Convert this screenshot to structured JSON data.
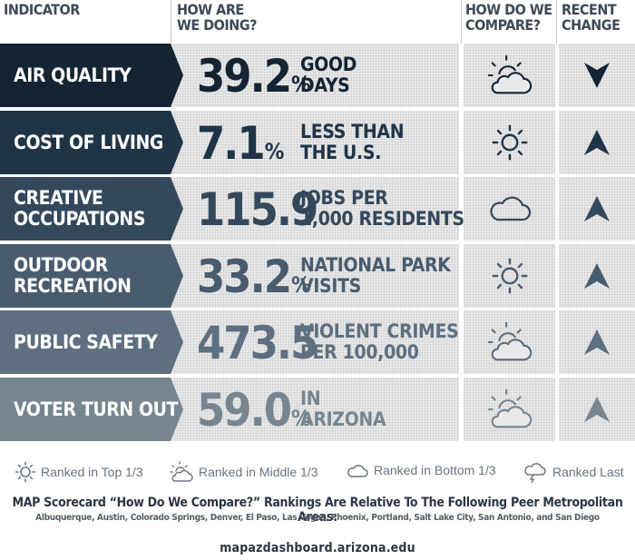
{
  "headers": {
    "indicator": "INDICATOR",
    "doing": "HOW ARE WE DOING?",
    "compare": "HOW DO WE COMPARE?",
    "change": "RECENT CHANGE"
  },
  "rows": [
    {
      "indicator": "AIR QUALITY",
      "value": "39.2",
      "unit": "%",
      "desc": [
        "GOOD",
        "DAYS"
      ],
      "compare": "partly-cloudy-icon",
      "change": "down",
      "color": "#142433",
      "text_color": "#142433"
    },
    {
      "indicator": "COST OF LIVING",
      "value": "7.1",
      "unit": "%",
      "desc": [
        "LESS THAN",
        "THE U.S."
      ],
      "compare": "sun-icon",
      "change": "up",
      "color": "#1f3447",
      "text_color": "#1f3447"
    },
    {
      "indicator": "CREATIVE OCCUPATIONS",
      "value": "115.9",
      "unit": "",
      "desc": [
        "JOBS PER",
        "1,000 RESIDENTS"
      ],
      "compare": "cloud-icon",
      "change": "up",
      "color": "#34485b",
      "text_color": "#34485b"
    },
    {
      "indicator": "OUTDOOR RECREATION",
      "value": "33.2",
      "unit": "%",
      "desc": [
        "NATIONAL PARK",
        "VISITS"
      ],
      "compare": "sun-icon",
      "change": "up",
      "color": "#485c6e",
      "text_color": "#485c6e"
    },
    {
      "indicator": "PUBLIC SAFETY",
      "value": "473.5",
      "unit": "",
      "desc": [
        "VIOLENT CRIMES",
        "PER 100,000"
      ],
      "compare": "partly-cloudy-icon",
      "change": "up",
      "color": "#5d6f80",
      "text_color": "#5d6f80"
    },
    {
      "indicator": "VOTER TURN OUT",
      "value": "59.0",
      "unit": "%",
      "desc": [
        "IN",
        "ARIZONA"
      ],
      "compare": "partly-cloudy-icon",
      "change": "up",
      "color": "#76858f",
      "text_color": "#76858f"
    }
  ],
  "legend": [
    {
      "icon": "sun-icon",
      "label": "Ranked in Top 1/3"
    },
    {
      "icon": "partly-cloudy-icon",
      "label": "Ranked in Middle 1/3"
    },
    {
      "icon": "cloud-icon",
      "label": "Ranked in Bottom 1/3"
    },
    {
      "icon": "rain-cloud-icon",
      "label": "Ranked Last"
    }
  ],
  "footer": {
    "note_title": "MAP Scorecard “How Do We Compare?” Rankings Are Relative To The Following Peer Metropolitan Areas:",
    "note_list": "Albuquerque, Austin, Colorado Springs, Denver, El Paso, Las Vegas, Phoenix, Portland, Salt Lake City, San Antonio, and San Diego",
    "site": "mapazdashboard.arizona.edu"
  }
}
